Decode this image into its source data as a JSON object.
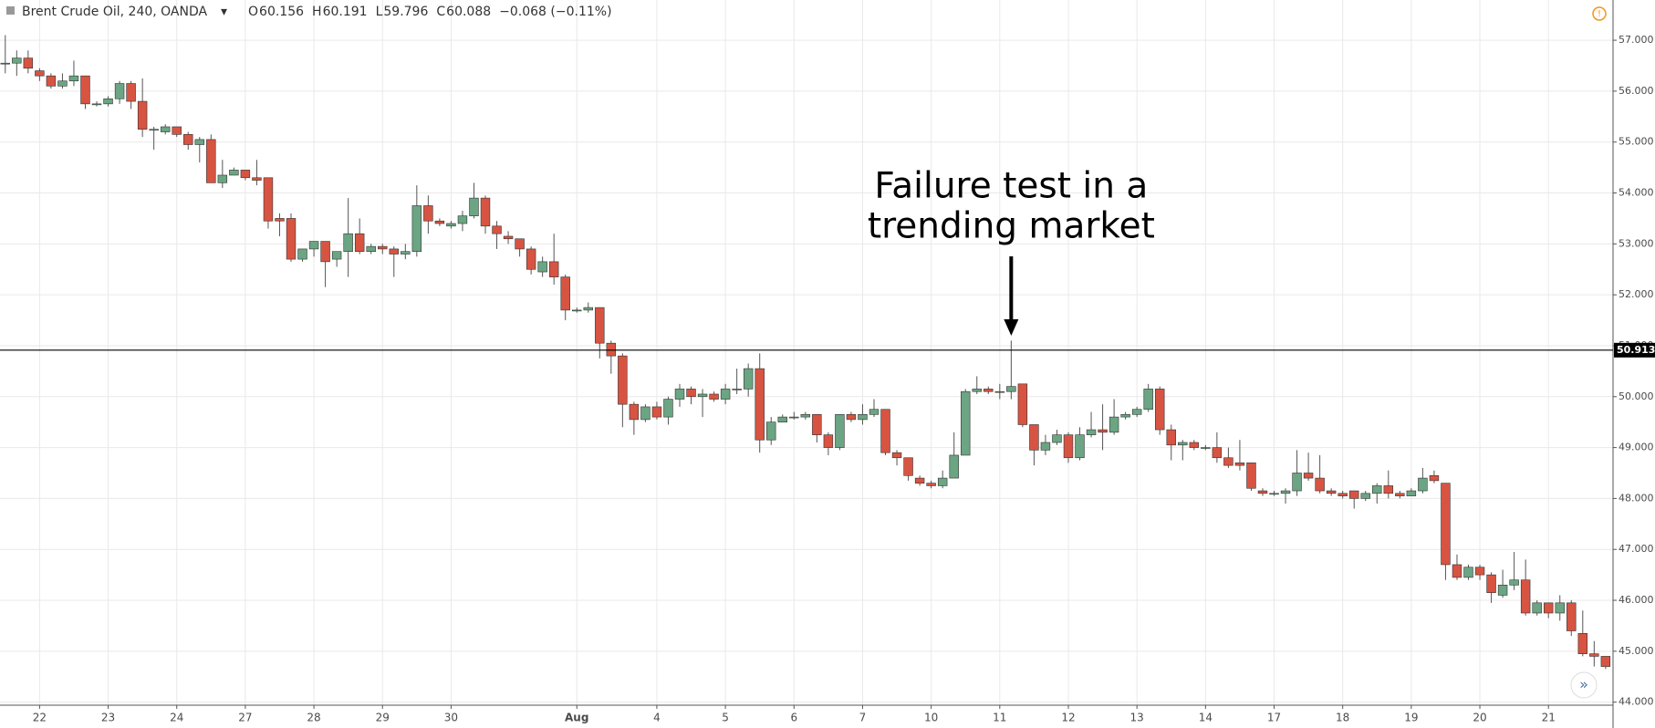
{
  "header": {
    "symbol": "Brent Crude Oil, 240, OANDA",
    "ohlc": [
      {
        "label": "O",
        "value": "60.156"
      },
      {
        "label": "H",
        "value": "60.191"
      },
      {
        "label": "L",
        "value": "59.796"
      },
      {
        "label": "C",
        "value": "60.088"
      }
    ],
    "change": "−0.068 (−0.11%)"
  },
  "chart_data": {
    "type": "candlestick",
    "categories": [
      null,
      null,
      null,
      "22",
      null,
      null,
      null,
      null,
      null,
      "23",
      null,
      null,
      null,
      null,
      null,
      "24",
      null,
      null,
      null,
      null,
      null,
      "27",
      null,
      null,
      null,
      null,
      null,
      "28",
      null,
      null,
      null,
      null,
      null,
      "29",
      null,
      null,
      null,
      null,
      null,
      "30",
      null,
      null,
      null,
      null,
      null,
      null,
      null,
      null,
      null,
      null,
      "Aug",
      null,
      null,
      null,
      null,
      null,
      null,
      "4",
      null,
      null,
      null,
      null,
      null,
      "5",
      null,
      null,
      null,
      null,
      null,
      "6",
      null,
      null,
      null,
      null,
      null,
      "7",
      null,
      null,
      null,
      null,
      null,
      "10",
      null,
      null,
      null,
      null,
      null,
      "11",
      null,
      null,
      null,
      null,
      null,
      "12",
      null,
      null,
      null,
      null,
      null,
      "13",
      null,
      null,
      null,
      null,
      null,
      "14",
      null,
      null,
      null,
      null,
      null,
      "17",
      null,
      null,
      null,
      null,
      null,
      "18",
      null,
      null,
      null,
      null,
      null,
      "19",
      null,
      null,
      null,
      null,
      null,
      "20",
      null,
      null,
      null,
      null,
      null,
      "21",
      null,
      null,
      null,
      null,
      null
    ],
    "open": [
      56.55,
      56.55,
      56.65,
      56.4,
      56.3,
      56.1,
      56.2,
      56.3,
      55.75,
      55.75,
      55.85,
      56.15,
      55.8,
      55.25,
      55.2,
      55.3,
      55.15,
      54.95,
      55.05,
      54.2,
      54.35,
      54.45,
      54.3,
      54.3,
      53.5,
      53.5,
      52.7,
      52.9,
      53.05,
      52.7,
      52.85,
      53.2,
      52.85,
      52.95,
      52.9,
      52.8,
      52.85,
      53.75,
      53.45,
      53.35,
      53.4,
      53.55,
      53.9,
      53.35,
      53.15,
      53.1,
      52.9,
      52.45,
      52.65,
      52.35,
      51.7,
      51.7,
      51.75,
      51.05,
      50.8,
      49.85,
      49.55,
      49.8,
      49.6,
      49.95,
      50.15,
      50.0,
      50.05,
      49.95,
      50.15,
      50.15,
      50.55,
      49.15,
      49.5,
      49.6,
      49.6,
      49.65,
      49.25,
      49.0,
      49.65,
      49.55,
      49.65,
      49.75,
      48.9,
      48.8,
      48.4,
      48.3,
      48.25,
      48.4,
      48.85,
      50.1,
      50.15,
      50.1,
      50.1,
      50.25,
      49.45,
      48.95,
      49.1,
      49.25,
      48.8,
      49.25,
      49.35,
      49.3,
      49.6,
      49.65,
      49.75,
      50.15,
      49.35,
      49.05,
      49.1,
      49.0,
      49.0,
      48.8,
      48.7,
      48.7,
      48.15,
      48.1,
      48.1,
      48.15,
      48.5,
      48.4,
      48.15,
      48.1,
      48.15,
      48.0,
      48.1,
      48.25,
      48.1,
      48.05,
      48.15,
      48.45,
      48.3,
      46.7,
      46.45,
      46.65,
      46.5,
      46.1,
      46.3,
      46.4,
      45.75,
      45.95,
      45.75,
      45.95,
      45.35,
      44.95,
      44.9
    ],
    "high": [
      57.1,
      56.8,
      56.8,
      56.45,
      56.35,
      56.35,
      56.6,
      56.3,
      55.8,
      55.9,
      56.2,
      56.2,
      56.25,
      55.3,
      55.35,
      55.3,
      55.2,
      55.1,
      55.15,
      54.65,
      54.5,
      54.45,
      54.65,
      54.3,
      53.6,
      53.6,
      52.9,
      53.05,
      53.05,
      52.85,
      53.9,
      53.5,
      53.0,
      53.0,
      52.95,
      53.0,
      54.15,
      53.95,
      53.5,
      53.45,
      53.65,
      54.2,
      53.95,
      53.45,
      53.25,
      53.1,
      52.95,
      52.75,
      53.2,
      52.4,
      51.75,
      51.85,
      51.75,
      51.1,
      50.85,
      49.9,
      49.85,
      49.9,
      50.0,
      50.25,
      50.2,
      50.15,
      50.1,
      50.25,
      50.55,
      50.65,
      50.85,
      49.6,
      49.65,
      49.7,
      49.7,
      49.65,
      49.3,
      49.65,
      49.7,
      49.85,
      49.95,
      49.75,
      48.95,
      48.8,
      48.45,
      48.35,
      48.55,
      49.3,
      50.15,
      50.4,
      50.2,
      50.25,
      51.1,
      50.25,
      49.45,
      49.25,
      49.35,
      49.3,
      49.4,
      49.7,
      49.85,
      49.95,
      49.7,
      49.8,
      50.25,
      50.2,
      49.45,
      49.15,
      49.15,
      49.05,
      49.3,
      49.0,
      49.15,
      48.7,
      48.2,
      48.15,
      48.2,
      48.95,
      48.9,
      48.85,
      48.2,
      48.15,
      48.15,
      48.15,
      48.3,
      48.55,
      48.15,
      48.2,
      48.6,
      48.55,
      48.3,
      46.9,
      46.7,
      46.7,
      46.55,
      46.6,
      46.95,
      46.8,
      46.0,
      45.95,
      46.1,
      46.0,
      45.8,
      45.2,
      44.9
    ],
    "low": [
      56.35,
      56.3,
      56.35,
      56.2,
      56.05,
      56.05,
      56.1,
      55.65,
      55.7,
      55.7,
      55.75,
      55.65,
      55.1,
      54.85,
      55.15,
      55.1,
      54.85,
      54.6,
      54.2,
      54.1,
      54.35,
      54.25,
      54.15,
      53.3,
      53.15,
      52.65,
      52.65,
      52.75,
      52.15,
      52.55,
      52.35,
      52.8,
      52.8,
      52.8,
      52.35,
      52.7,
      52.75,
      53.2,
      53.35,
      53.3,
      53.25,
      53.5,
      53.2,
      52.9,
      53.0,
      52.75,
      52.4,
      52.35,
      52.2,
      51.5,
      51.65,
      51.65,
      50.75,
      50.45,
      49.4,
      49.25,
      49.5,
      49.55,
      49.45,
      49.8,
      49.85,
      49.6,
      49.9,
      49.85,
      50.05,
      50.0,
      48.9,
      49.05,
      49.5,
      49.55,
      49.55,
      49.1,
      48.85,
      48.95,
      49.5,
      49.45,
      49.6,
      48.85,
      48.65,
      48.35,
      48.25,
      48.2,
      48.2,
      48.4,
      48.85,
      50.05,
      50.05,
      49.95,
      49.95,
      49.4,
      48.65,
      48.85,
      49.05,
      48.7,
      48.75,
      49.2,
      48.95,
      49.25,
      49.55,
      49.6,
      49.7,
      49.25,
      48.75,
      48.75,
      48.95,
      48.95,
      48.7,
      48.6,
      48.55,
      48.15,
      48.05,
      48.05,
      47.9,
      48.05,
      48.35,
      48.1,
      48.05,
      48.0,
      47.8,
      47.95,
      47.9,
      48.0,
      48.0,
      48.05,
      48.1,
      48.3,
      46.4,
      46.4,
      46.4,
      46.4,
      45.95,
      46.05,
      46.2,
      45.7,
      45.7,
      45.65,
      45.6,
      45.3,
      44.9,
      44.7,
      44.65
    ],
    "close": [
      56.55,
      56.65,
      56.45,
      56.3,
      56.1,
      56.2,
      56.3,
      55.75,
      55.75,
      55.85,
      56.15,
      55.8,
      55.25,
      55.25,
      55.3,
      55.15,
      54.95,
      55.05,
      54.2,
      54.35,
      54.45,
      54.3,
      54.25,
      53.45,
      53.45,
      52.7,
      52.9,
      53.05,
      52.65,
      52.85,
      53.2,
      52.85,
      52.95,
      52.9,
      52.8,
      52.85,
      53.75,
      53.45,
      53.4,
      53.4,
      53.55,
      53.9,
      53.35,
      53.2,
      53.1,
      52.9,
      52.5,
      52.65,
      52.35,
      51.7,
      51.7,
      51.75,
      51.05,
      50.8,
      49.85,
      49.55,
      49.8,
      49.6,
      49.95,
      50.15,
      50.0,
      50.05,
      49.95,
      50.15,
      50.15,
      50.55,
      49.15,
      49.5,
      49.6,
      49.6,
      49.65,
      49.25,
      49.0,
      49.65,
      49.55,
      49.65,
      49.75,
      48.9,
      48.8,
      48.45,
      48.3,
      48.25,
      48.4,
      48.85,
      50.1,
      50.15,
      50.1,
      50.1,
      50.2,
      49.45,
      48.95,
      49.1,
      49.25,
      48.8,
      49.25,
      49.35,
      49.3,
      49.6,
      49.65,
      49.75,
      50.15,
      49.35,
      49.05,
      49.1,
      49.0,
      49.0,
      48.8,
      48.65,
      48.65,
      48.2,
      48.1,
      48.1,
      48.15,
      48.5,
      48.4,
      48.15,
      48.1,
      48.05,
      48.0,
      48.1,
      48.25,
      48.1,
      48.05,
      48.15,
      48.4,
      48.35,
      46.7,
      46.45,
      46.65,
      46.5,
      46.15,
      46.3,
      46.4,
      45.75,
      45.95,
      45.75,
      45.95,
      45.4,
      44.95,
      44.9,
      44.7
    ],
    "up_color": "#6ba583",
    "down_color": "#d75442",
    "ylim": [
      43.94,
      57.79
    ],
    "yticks": [
      {
        "value": 44,
        "label": "44.000"
      },
      {
        "value": 45,
        "label": "45.000"
      },
      {
        "value": 46,
        "label": "46.000"
      },
      {
        "value": 47,
        "label": "47.000"
      },
      {
        "value": 48,
        "label": "48.000"
      },
      {
        "value": 49,
        "label": "49.000"
      },
      {
        "value": 50,
        "label": "50.000"
      },
      {
        "value": 51,
        "label": "51.000"
      },
      {
        "value": 52,
        "label": "52.000"
      },
      {
        "value": 53,
        "label": "53.000"
      },
      {
        "value": 54,
        "label": "54.000"
      },
      {
        "value": 55,
        "label": "55.000"
      },
      {
        "value": 56,
        "label": "56.000"
      },
      {
        "value": 57,
        "label": "57.000"
      }
    ],
    "grid": true,
    "price_line": 50.913,
    "annotation": [
      "Failure test in a",
      "trending market"
    ]
  }
}
